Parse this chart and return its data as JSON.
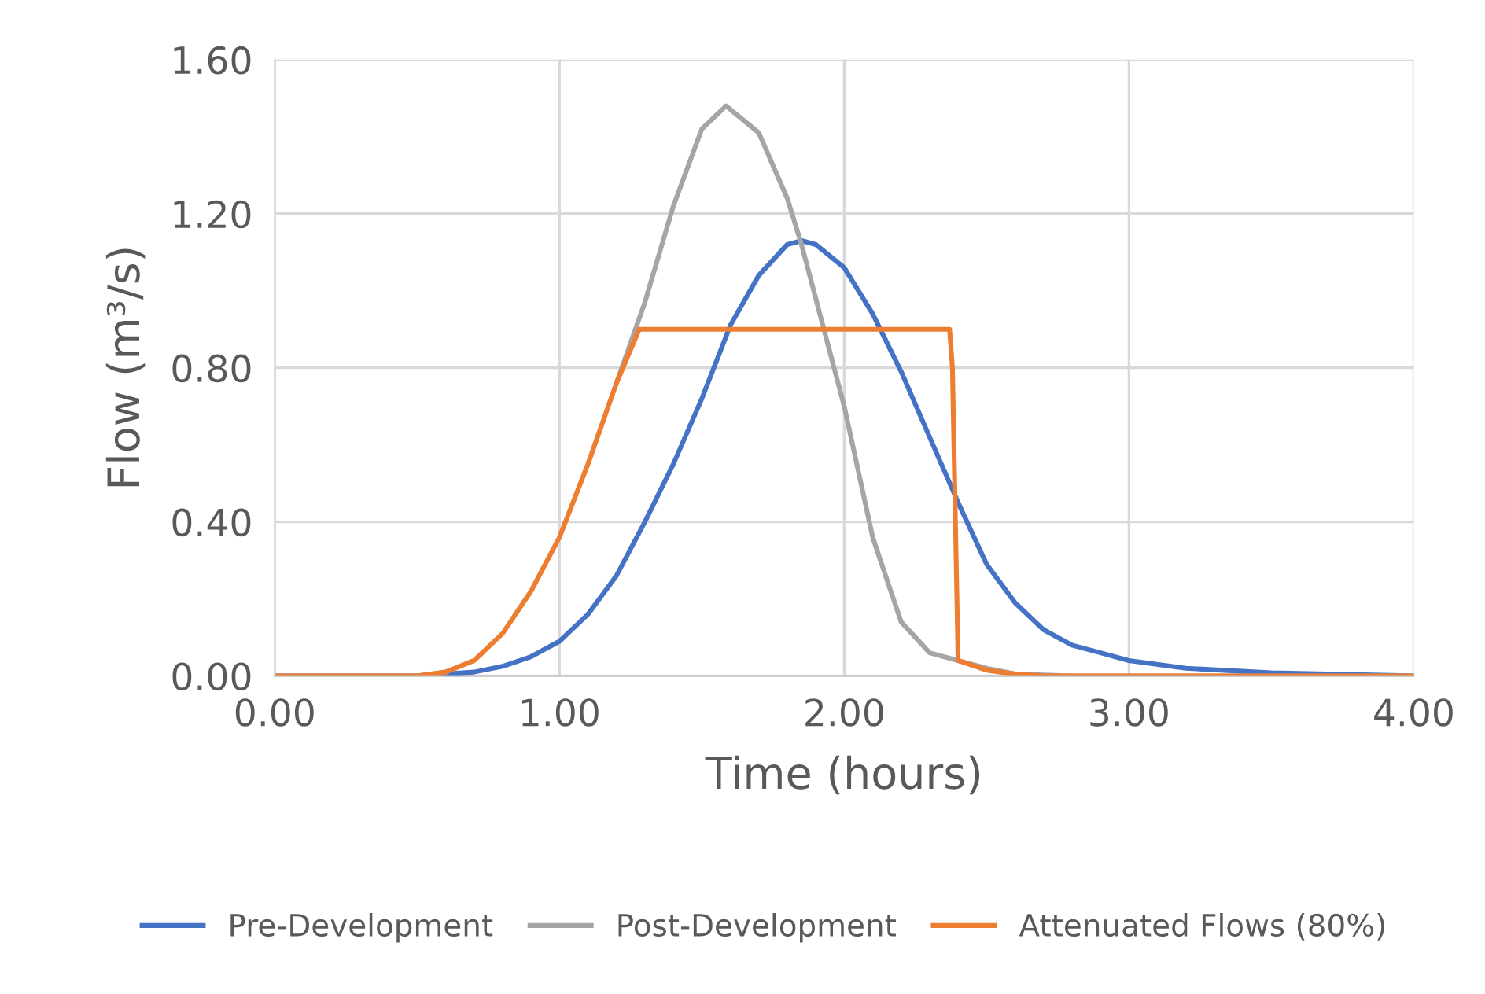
{
  "chart_data": {
    "type": "line",
    "xlabel": "Time (hours)",
    "ylabel": "Flow (m³/s)",
    "xlim": [
      0,
      4
    ],
    "ylim": [
      0,
      1.6
    ],
    "xticks": [
      {
        "value": 0,
        "label": "0.00"
      },
      {
        "value": 1,
        "label": "1.00"
      },
      {
        "value": 2,
        "label": "2.00"
      },
      {
        "value": 3,
        "label": "3.00"
      },
      {
        "value": 4,
        "label": "4.00"
      }
    ],
    "yticks": [
      {
        "value": 0,
        "label": "0.00"
      },
      {
        "value": 0.4,
        "label": "0.40"
      },
      {
        "value": 0.8,
        "label": "0.80"
      },
      {
        "value": 1.2,
        "label": "1.20"
      },
      {
        "value": 1.6,
        "label": "1.60"
      }
    ],
    "grid": true,
    "legend": "bottom",
    "marker": "none",
    "line_style": "solid",
    "series": [
      {
        "name": "Pre-Development",
        "color": "#4472c4",
        "x": [
          0,
          0.5,
          0.7,
          0.8,
          0.9,
          1.0,
          1.1,
          1.2,
          1.3,
          1.4,
          1.5,
          1.6,
          1.7,
          1.8,
          1.85,
          1.9,
          2.0,
          2.1,
          2.2,
          2.3,
          2.4,
          2.5,
          2.6,
          2.7,
          2.8,
          2.9,
          3.0,
          3.2,
          3.5,
          4.0
        ],
        "values": [
          0,
          0,
          0.01,
          0.025,
          0.05,
          0.09,
          0.16,
          0.26,
          0.4,
          0.55,
          0.72,
          0.91,
          1.04,
          1.12,
          1.13,
          1.12,
          1.06,
          0.94,
          0.79,
          0.62,
          0.45,
          0.29,
          0.19,
          0.12,
          0.08,
          0.06,
          0.04,
          0.02,
          0.008,
          0
        ]
      },
      {
        "name": "Post-Development",
        "color": "#a5a5a5",
        "x": [
          0,
          0.5,
          0.6,
          0.7,
          0.8,
          0.9,
          1.0,
          1.1,
          1.2,
          1.3,
          1.4,
          1.5,
          1.585,
          1.7,
          1.8,
          1.85,
          1.9,
          2.0,
          2.1,
          2.2,
          2.3,
          2.4,
          2.5,
          2.6,
          2.8,
          4.0
        ],
        "values": [
          0,
          0,
          0.01,
          null,
          null,
          null,
          null,
          null,
          0.76,
          0.97,
          1.22,
          1.42,
          1.48,
          1.41,
          1.24,
          1.12,
          0.98,
          0.7,
          0.36,
          0.14,
          0.06,
          0.04,
          0.02,
          0.005,
          0,
          0
        ]
      },
      {
        "name": "Attenuated Flows (80%)",
        "color": "#ed7d31",
        "x": [
          0,
          0.5,
          0.6,
          0.7,
          0.8,
          0.9,
          1.0,
          1.1,
          1.2,
          1.28,
          2.37,
          2.38,
          2.4,
          2.5,
          2.6,
          2.7,
          4.0
        ],
        "values": [
          0,
          0,
          0.01,
          0.04,
          0.11,
          0.22,
          0.36,
          0.55,
          0.76,
          0.9,
          0.9,
          0.8,
          0.04,
          0.015,
          0.005,
          0,
          0
        ]
      }
    ]
  }
}
